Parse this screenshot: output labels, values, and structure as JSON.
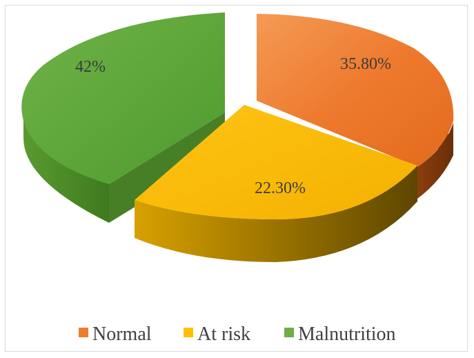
{
  "chart_data": {
    "type": "pie",
    "style": "3d-exploded",
    "title": "",
    "slices": [
      {
        "name": "Normal",
        "value": 35.8,
        "label": "35.80%",
        "color": "#ed7d31"
      },
      {
        "name": "At risk",
        "value": 22.3,
        "label": "22.30%",
        "color": "#ffc000"
      },
      {
        "name": "Malnutrition",
        "value": 42,
        "label": "42%",
        "color": "#70ad47"
      }
    ],
    "legend": {
      "position": "bottom",
      "entries": [
        "Normal",
        "At risk",
        "Malnutrition"
      ]
    }
  }
}
